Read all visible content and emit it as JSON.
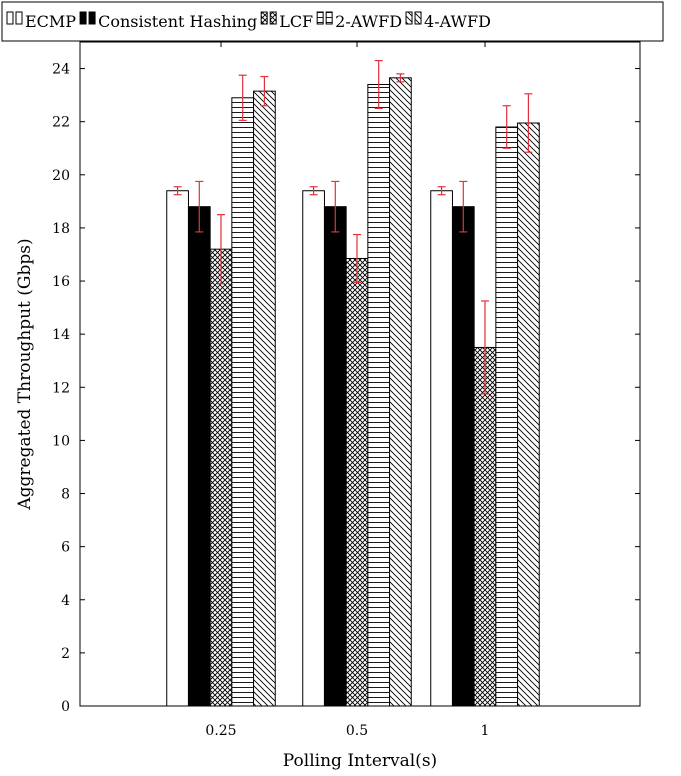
{
  "chart_data": {
    "type": "bar",
    "title": "",
    "xlabel": "Polling Interval(s)",
    "ylabel": "Aggregated Throughput (Gbps)",
    "categories": [
      "0.25",
      "0.5",
      "1"
    ],
    "ylim": [
      0,
      25
    ],
    "yticks": [
      0,
      2,
      4,
      6,
      8,
      10,
      12,
      14,
      16,
      18,
      20,
      22,
      24
    ],
    "grid": false,
    "legend_position": "top",
    "error_bar_color": "#e0323c",
    "series": [
      {
        "name": "ECMP",
        "pattern": "white",
        "values": [
          19.4,
          19.4,
          19.4
        ],
        "errors": [
          0.15,
          0.15,
          0.15
        ]
      },
      {
        "name": "Consistent Hashing",
        "pattern": "black",
        "values": [
          18.8,
          18.8,
          18.8
        ],
        "errors": [
          0.95,
          0.95,
          0.95
        ]
      },
      {
        "name": "LCF",
        "pattern": "crosshatch",
        "values": [
          17.2,
          16.85,
          13.5
        ],
        "errors": [
          1.3,
          0.9,
          1.75
        ]
      },
      {
        "name": "2-AWFD",
        "pattern": "horizontal-lines",
        "values": [
          22.9,
          23.4,
          21.8
        ],
        "errors": [
          0.85,
          0.9,
          0.8
        ]
      },
      {
        "name": "4-AWFD",
        "pattern": "diagonal-lines",
        "values": [
          23.15,
          23.65,
          21.95
        ],
        "errors": [
          0.55,
          0.15,
          1.1
        ]
      }
    ]
  }
}
